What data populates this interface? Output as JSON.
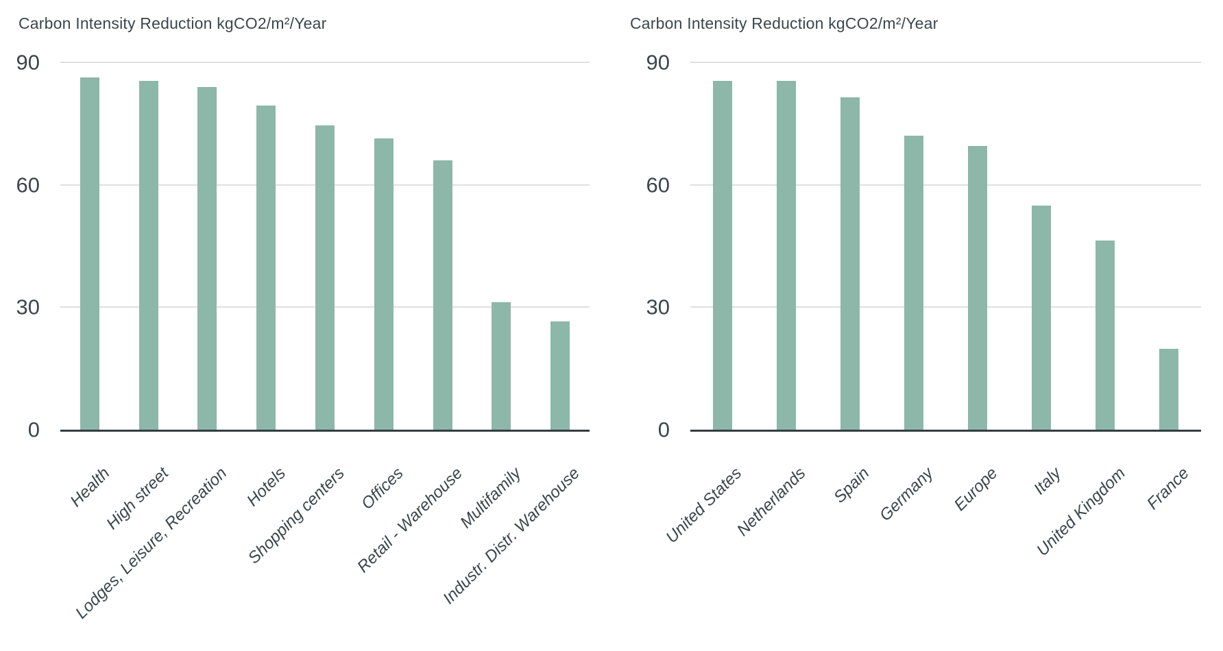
{
  "page": {
    "background": "#FFFFFF"
  },
  "colors": {
    "bar": "#8DB7A8",
    "gridline": "#E0E0E0",
    "axis_line": "#333E44",
    "text": "#3A464C"
  },
  "chart_data": [
    {
      "type": "bar",
      "title": "Carbon Intensity Reduction kgCO2/m²/Year",
      "categories": [
        "Health",
        "High street",
        "Lodges, Leisure, Recreation",
        "Hotels",
        "Shopping centers",
        "Offices",
        "Retail - Warehouse",
        "Multifamily",
        "Industr. Distr. Warehouse"
      ],
      "values": [
        86.3,
        85.5,
        84.0,
        79.4,
        74.6,
        71.4,
        66.0,
        31.2,
        26.5
      ],
      "xlabel": "",
      "ylabel": "",
      "ylim": [
        0,
        90
      ],
      "yticks": [
        0,
        30,
        60,
        90
      ],
      "grid": true,
      "legend_position": "none",
      "bar_color": "#8DB7A8"
    },
    {
      "type": "bar",
      "title": "Carbon Intensity Reduction kgCO2/m²/Year",
      "categories": [
        "United States",
        "Netherlands",
        "Spain",
        "Germany",
        "Europe",
        "Italy",
        "United Kingdom",
        "France"
      ],
      "values": [
        85.5,
        85.4,
        81.5,
        72.1,
        69.6,
        54.9,
        46.3,
        19.8
      ],
      "xlabel": "",
      "ylabel": "",
      "ylim": [
        0,
        90
      ],
      "yticks": [
        0,
        30,
        60,
        90
      ],
      "grid": true,
      "legend_position": "none",
      "bar_color": "#8DB7A8"
    }
  ]
}
